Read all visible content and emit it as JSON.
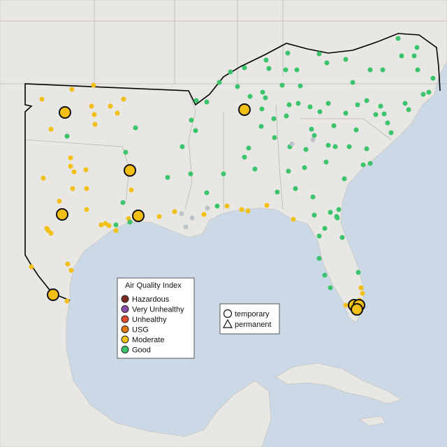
{
  "legend": {
    "title": "Air Quality Index",
    "items": [
      {
        "label": "Hazardous",
        "color": "#7b2b24"
      },
      {
        "label": "Very Unhealthy",
        "color": "#8e4fa8"
      },
      {
        "label": "Unhealthy",
        "color": "#e04a2f"
      },
      {
        "label": "USG",
        "color": "#e0780f"
      },
      {
        "label": "Moderate",
        "color": "#f2c014"
      },
      {
        "label": "Good",
        "color": "#3cc46c"
      }
    ]
  },
  "shape_legend": {
    "items": [
      "temporary",
      "permanent"
    ]
  }
}
